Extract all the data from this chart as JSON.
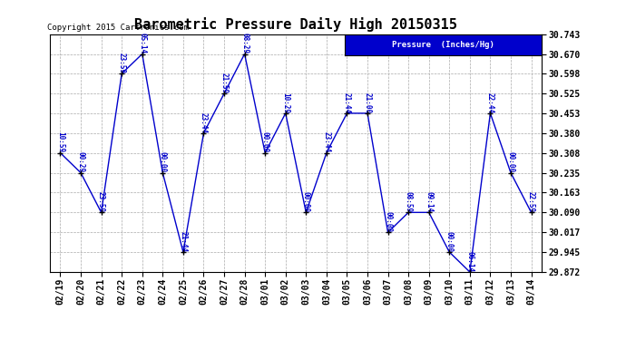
{
  "title": "Barometric Pressure Daily High 20150315",
  "copyright": "Copyright 2015 Cartronics.com",
  "legend_label": "Pressure  (Inches/Hg)",
  "dates": [
    "02/19",
    "02/20",
    "02/21",
    "02/22",
    "02/23",
    "02/24",
    "02/25",
    "02/26",
    "02/27",
    "02/28",
    "03/01",
    "03/02",
    "03/03",
    "03/04",
    "03/05",
    "03/06",
    "03/07",
    "03/08",
    "03/09",
    "03/10",
    "03/11",
    "03/12",
    "03/13",
    "03/14"
  ],
  "values": [
    30.308,
    30.235,
    30.09,
    30.598,
    30.67,
    30.235,
    29.945,
    30.38,
    30.525,
    30.67,
    30.308,
    30.453,
    30.09,
    30.308,
    30.453,
    30.453,
    30.017,
    30.09,
    30.09,
    29.945,
    29.872,
    30.453,
    30.235,
    30.09
  ],
  "annotations": [
    "10:59",
    "00:29",
    "23:59",
    "23:59",
    "05:14",
    "00:00",
    "21:44",
    "23:44",
    "21:59",
    "08:29",
    "00:00",
    "10:29",
    "00:00",
    "23:44",
    "21:44",
    "21:00",
    "00:00",
    "08:59",
    "09:14",
    "00:00",
    "06:14",
    "22:44",
    "00:00",
    "22:59"
  ],
  "line_color": "#0000CC",
  "marker_color": "#000000",
  "annotation_color": "#0000CC",
  "background_color": "#ffffff",
  "grid_color": "#aaaaaa",
  "ylim": [
    29.872,
    30.743
  ],
  "yticks": [
    29.872,
    29.945,
    30.017,
    30.09,
    30.163,
    30.235,
    30.308,
    30.38,
    30.453,
    30.525,
    30.598,
    30.67,
    30.743
  ],
  "legend_bg": "#0000CC",
  "legend_text_color": "#ffffff",
  "title_fontsize": 11,
  "annotation_fontsize": 5.5,
  "tick_fontsize": 7,
  "copyright_fontsize": 6.5
}
